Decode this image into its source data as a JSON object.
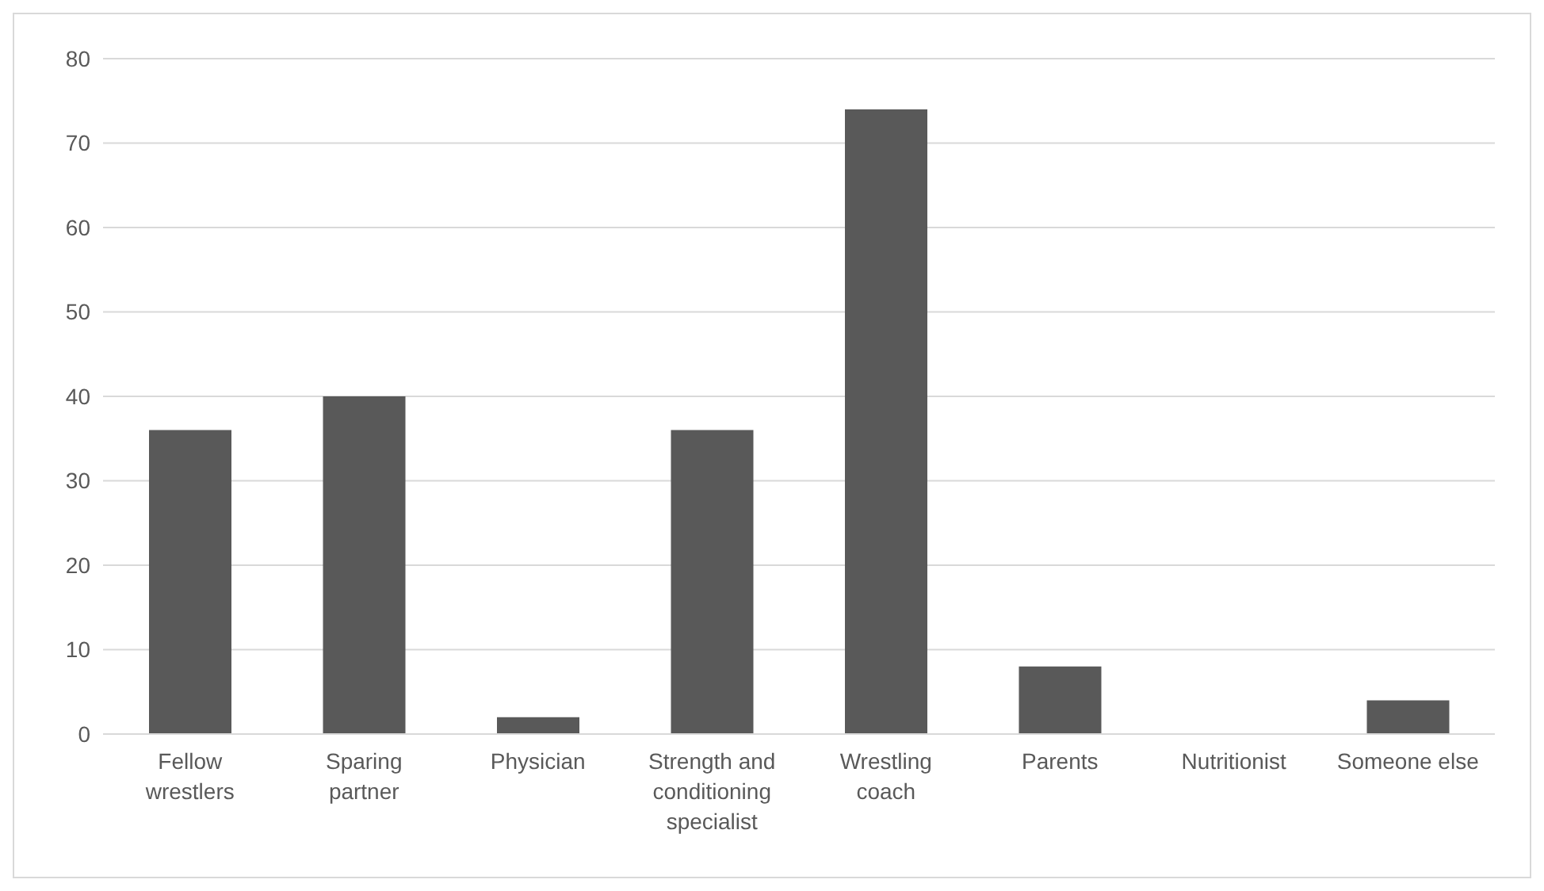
{
  "chart_data": {
    "type": "bar",
    "categories": [
      "Fellow wrestlers",
      "Sparing partner",
      "Physician",
      "Strength and conditioning specialist",
      "Wrestling coach",
      "Parents",
      "Nutritionist",
      "Someone else"
    ],
    "values": [
      36,
      40,
      2,
      36,
      74,
      8,
      0,
      4
    ],
    "color": "#595959",
    "ylim": [
      0,
      80
    ],
    "yticks": [
      0,
      10,
      20,
      30,
      40,
      50,
      60,
      70,
      80
    ],
    "grid": "y",
    "legend": false
  }
}
